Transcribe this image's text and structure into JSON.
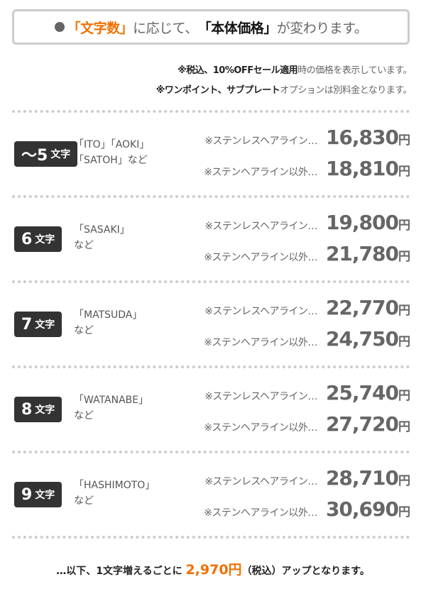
{
  "header": {
    "pre": "「文字数」",
    "mid": "に応じて、",
    "bold": "「本体価格」",
    "post": "が変わります。"
  },
  "notes": [
    {
      "bold": "※税込、10%OFFセール適用",
      "rest": "時の価格を表示しています。"
    },
    {
      "bold": "※ワンポイント、サブプレート",
      "rest": "オプションは別料金となります。"
    }
  ],
  "rows": [
    {
      "count": "～5",
      "unit": "文字",
      "names": "「ITO」「AOKI」\n「SATOH」など",
      "label1": "※ステンレスヘアライン…",
      "price1": "16,830",
      "label2": "※ステンヘアライン以外…",
      "price2": "18,810"
    },
    {
      "count": "6",
      "unit": "文字",
      "names": "「SASAKI」\nなど",
      "label1": "※ステンレスヘアライン…",
      "price1": "19,800",
      "label2": "※ステンヘアライン以外…",
      "price2": "21,780"
    },
    {
      "count": "7",
      "unit": "文字",
      "names": "「MATSUDA」\nなど",
      "label1": "※ステンレスヘアライン…",
      "price1": "22,770",
      "label2": "※ステンヘアライン以外…",
      "price2": "24,750"
    },
    {
      "count": "8",
      "unit": "文字",
      "names": "「WATANABE」\nなど",
      "label1": "※ステンレスヘアライン…",
      "price1": "25,740",
      "label2": "※ステンヘアライン以外…",
      "price2": "27,720"
    },
    {
      "count": "9",
      "unit": "文字",
      "names": "「HASHIMOTO」\nなど",
      "label1": "※ステンレスヘアライン…",
      "price1": "28,710",
      "label2": "※ステンヘアライン以外…",
      "price2": "30,690"
    }
  ],
  "yen": "円",
  "footer": {
    "pre": "…以下、1文字増えるごとに ",
    "price": "2,970円",
    "post": "（税込）アップとなります。"
  },
  "colors": {
    "accent": "#f07000",
    "badge": "#333333"
  }
}
